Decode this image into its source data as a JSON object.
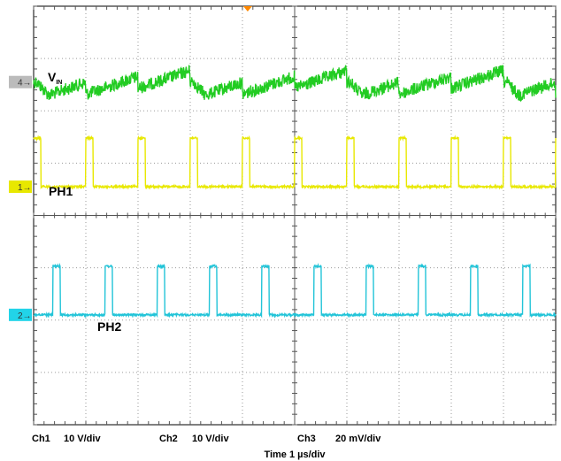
{
  "chart_data": {
    "type": "line",
    "graticule": {
      "divisions_x": 10,
      "divisions_y": 8,
      "minor_ticks_per_div": 5
    },
    "x_unit_per_div": "1 µs",
    "traces": [
      {
        "name": "VIN",
        "label_main": "V",
        "label_sub": "IN",
        "channel": "4",
        "color": "#22cc22",
        "marker_color": "#bbbbbb",
        "kind": "noisy",
        "level_div": 1.45,
        "noise_div": 0.12,
        "period_div": 3.0,
        "phase_div": 0.05,
        "ripple_div": 0.35
      },
      {
        "name": "PH1",
        "label_main": "PH1",
        "channel": "1",
        "color": "#e8e800",
        "marker_color": "#e8e800",
        "kind": "pulse",
        "level_div": 3.45,
        "high_div": 0.93,
        "period_div": 1.0,
        "phase_div": 0.0,
        "duty": 0.14,
        "noise_div": 0.02
      },
      {
        "name": "PH2",
        "label_main": "PH2",
        "channel": "2",
        "color": "#22c4d8",
        "marker_color": "#22d4e8",
        "kind": "pulse",
        "level_div": 5.9,
        "high_div": 0.93,
        "period_div": 1.0,
        "phase_div": 0.37,
        "duty": 0.14,
        "noise_div": 0.02
      }
    ],
    "status": {
      "ch1": "Ch1",
      "ch1_scale": "10 V/div",
      "ch2": "Ch2",
      "ch2_scale": "10 V/div",
      "ch3": "Ch3",
      "ch3_scale": "20 mV/div",
      "time": "Time  1 µs/div"
    },
    "trigger_marker_color": "#ff8800"
  }
}
